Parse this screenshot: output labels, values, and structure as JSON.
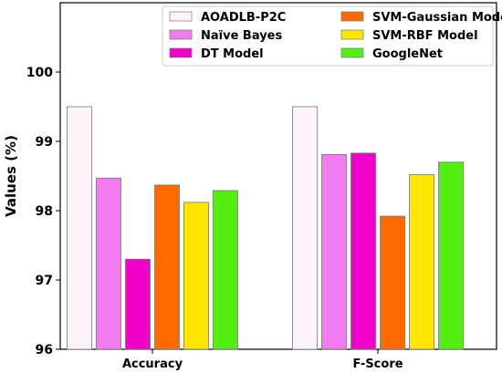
{
  "chart_data": {
    "type": "bar",
    "ylabel": "Values (%)",
    "xlabel": "",
    "ylim": [
      96,
      101
    ],
    "yticks": [
      96,
      97,
      98,
      99,
      100
    ],
    "categories": [
      "Accuracy",
      "F-Score"
    ],
    "series": [
      {
        "name": "AOADLB-P2C",
        "color": "#fef2fb",
        "values": [
          99.5,
          99.5
        ]
      },
      {
        "name": "Naïve Bayes",
        "color": "#f07cf0",
        "values": [
          98.47,
          98.81
        ]
      },
      {
        "name": "DT Model",
        "color": "#f000c8",
        "values": [
          97.3,
          98.83
        ]
      },
      {
        "name": "SVM-Gaussian Model",
        "color": "#ff6a00",
        "values": [
          98.37,
          97.92
        ]
      },
      {
        "name": "SVM-RBF Model",
        "color": "#ffe600",
        "values": [
          98.12,
          98.52
        ]
      },
      {
        "name": "GoogleNet",
        "color": "#55ee11",
        "values": [
          98.29,
          98.7
        ]
      }
    ],
    "legend_position": "top-right",
    "grid": false
  }
}
